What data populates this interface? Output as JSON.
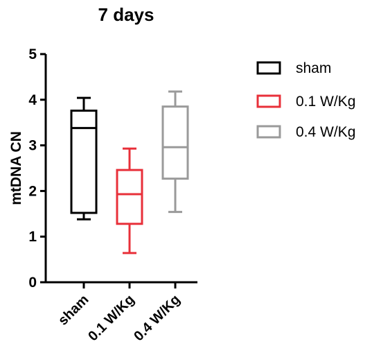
{
  "chart_data": {
    "type": "box",
    "title": "7 days",
    "xlabel": "",
    "ylabel": "mtDNA CN",
    "ylim": [
      0,
      5
    ],
    "yticks": [
      "0",
      "1",
      "2",
      "3",
      "4",
      "5"
    ],
    "categories": [
      "sham",
      "0.1 W/Kg",
      "0.4 W/Kg"
    ],
    "series": [
      {
        "name": "sham",
        "color": "#000000",
        "min": 1.38,
        "q1": 1.52,
        "median": 3.38,
        "q3": 3.76,
        "max": 4.04
      },
      {
        "name": "0.1 W/Kg",
        "color": "#e8303a",
        "min": 0.64,
        "q1": 1.28,
        "median": 1.93,
        "q3": 2.46,
        "max": 2.93
      },
      {
        "name": "0.4 W/Kg",
        "color": "#9a9a9a",
        "min": 1.54,
        "q1": 2.27,
        "median": 2.96,
        "q3": 3.85,
        "max": 4.18
      }
    ],
    "legend": {
      "position": "right",
      "entries": [
        "sham",
        "0.1 W/Kg",
        "0.4 W/Kg"
      ]
    },
    "grid": false
  }
}
